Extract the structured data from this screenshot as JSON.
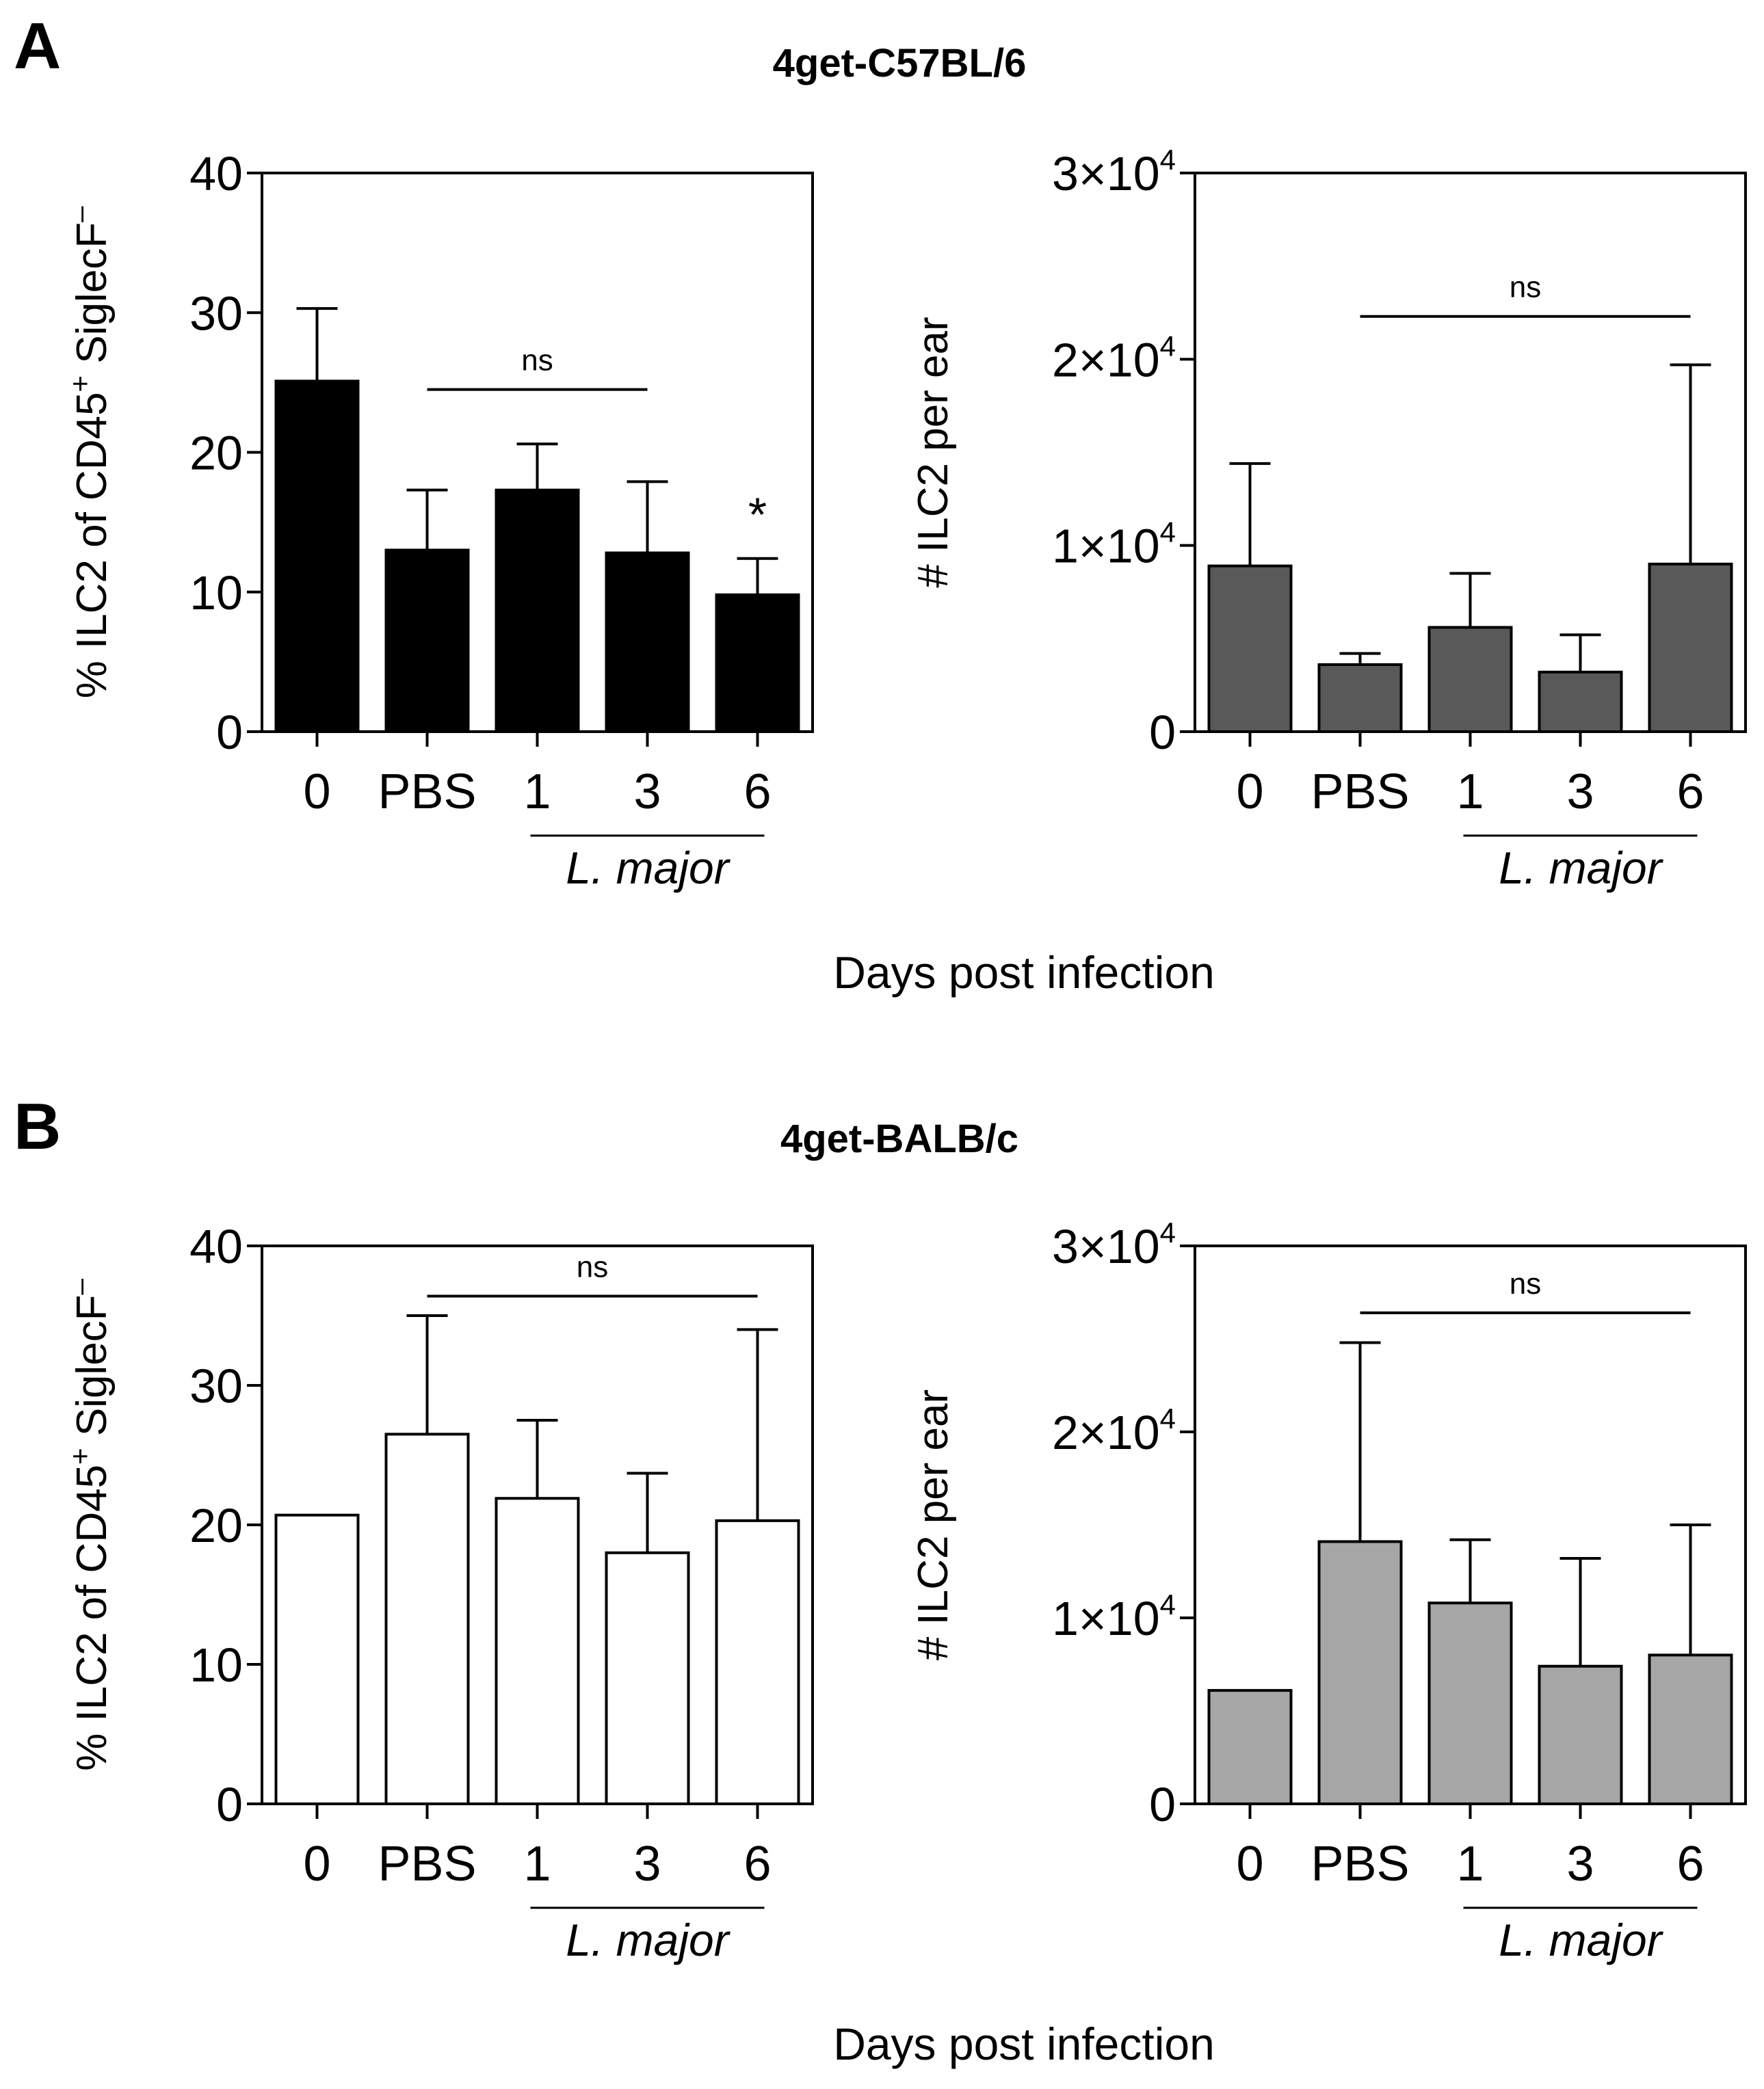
{
  "figure": {
    "panels": [
      {
        "letter": "A",
        "strain": "4get-C57BL/6",
        "strain_color": "#ff0000"
      },
      {
        "letter": "B",
        "strain": "4get-BALB/c",
        "strain_color": "#00a0e8"
      }
    ],
    "xtitle_A": "Days post infection",
    "xtitle_B": "Days post infection"
  },
  "chart_data": [
    {
      "id": "A-left",
      "panel": "A",
      "type": "bar",
      "categories": [
        "0",
        "PBS",
        "1",
        "3",
        "6"
      ],
      "group_label": "L. major",
      "values": [
        25.1,
        13.0,
        17.3,
        12.8,
        9.8
      ],
      "errors": [
        5.2,
        4.3,
        3.3,
        5.1,
        2.6
      ],
      "bar_color": "#000000",
      "ylim": [
        0,
        40
      ],
      "yticks": [
        "0",
        "10",
        "20",
        "30",
        "40"
      ],
      "ylabel": "% ILC2 of CD45⁺ SiglecF⁻",
      "ylabel_parts": [
        "% ILC2 of CD45",
        "+",
        " SiglecF",
        "–"
      ],
      "significance": [
        {
          "label": "ns",
          "from": "PBS",
          "to": "3"
        }
      ],
      "star": {
        "label": "*",
        "category": "6"
      }
    },
    {
      "id": "A-right",
      "panel": "A",
      "type": "bar",
      "categories": [
        "0",
        "PBS",
        "1",
        "3",
        "6"
      ],
      "group_label": "L. major",
      "values": [
        8900,
        3600,
        5600,
        3200,
        9000
      ],
      "errors": [
        5500,
        600,
        2900,
        2000,
        10700
      ],
      "bar_color": "#595959",
      "ylim": [
        0,
        30000
      ],
      "yticks": [
        {
          "mant": "0",
          "exp": ""
        },
        {
          "mant": "1×10",
          "exp": "4"
        },
        {
          "mant": "2×10",
          "exp": "4"
        },
        {
          "mant": "3×10",
          "exp": "4"
        }
      ],
      "ylabel": "# ILC2 per ear",
      "significance": [
        {
          "label": "ns",
          "from": "PBS",
          "to": "6"
        }
      ]
    },
    {
      "id": "B-left",
      "panel": "B",
      "type": "bar",
      "categories": [
        "0",
        "PBS",
        "1",
        "3",
        "6"
      ],
      "group_label": "L. major",
      "values": [
        20.7,
        26.5,
        21.9,
        18.0,
        20.3
      ],
      "errors": [
        0,
        8.5,
        5.6,
        5.7,
        13.7
      ],
      "bar_color": "#ffffff",
      "ylim": [
        0,
        40
      ],
      "yticks": [
        "0",
        "10",
        "20",
        "30",
        "40"
      ],
      "ylabel": "% ILC2 of CD45⁺ SiglecF⁻",
      "ylabel_parts": [
        "% ILC2 of CD45",
        "+",
        " SiglecF",
        "–"
      ],
      "significance": [
        {
          "label": "ns",
          "from": "PBS",
          "to": "6"
        }
      ]
    },
    {
      "id": "B-right",
      "panel": "B",
      "type": "bar",
      "categories": [
        "0",
        "PBS",
        "1",
        "3",
        "6"
      ],
      "group_label": "L. major",
      "values": [
        6100,
        14100,
        10800,
        7400,
        8000
      ],
      "errors": [
        0,
        10700,
        3400,
        5800,
        7000
      ],
      "bar_color": "#a6a6a6",
      "ylim": [
        0,
        30000
      ],
      "yticks": [
        {
          "mant": "0",
          "exp": ""
        },
        {
          "mant": "1×10",
          "exp": "4"
        },
        {
          "mant": "2×10",
          "exp": "4"
        },
        {
          "mant": "3×10",
          "exp": "4"
        }
      ],
      "ylabel": "# ILC2 per ear",
      "significance": [
        {
          "label": "ns",
          "from": "PBS",
          "to": "6"
        }
      ]
    }
  ]
}
